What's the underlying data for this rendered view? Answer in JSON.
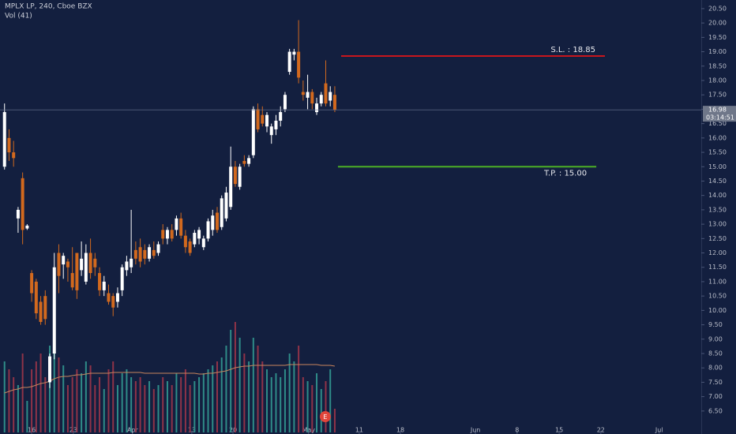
{
  "chart_data": {
    "type": "candlestick",
    "title": "MPLX LP, 240, Cboe BZX",
    "subtitle": "Vol (41)",
    "up_color": "#ffffff",
    "down_color": "#d2691e",
    "volume_up_color": "#2f8c88",
    "volume_down_color": "#8f3348",
    "volume_ma_color": "#c8845c",
    "x": [
      0,
      1,
      2,
      3,
      4,
      5,
      6,
      7,
      8,
      9,
      10,
      11,
      12,
      13,
      14,
      15,
      16,
      17,
      18,
      19,
      20,
      21,
      22,
      23,
      24,
      25,
      26,
      27,
      28,
      29,
      30,
      31,
      32,
      33,
      34,
      35,
      36,
      37,
      38,
      39,
      40,
      41,
      42,
      43,
      44,
      45,
      46,
      47,
      48,
      49,
      50,
      51,
      52,
      53,
      54,
      55,
      56,
      57,
      58,
      59,
      60,
      61,
      62,
      63,
      64,
      65,
      66,
      67,
      68,
      69,
      70,
      71,
      72,
      73
    ],
    "open": [
      15.0,
      16.0,
      15.5,
      13.2,
      14.6,
      12.85,
      11.3,
      11.0,
      10.3,
      10.5,
      7.5,
      8.5,
      12.0,
      11.6,
      11.7,
      11.3,
      12.0,
      11.4,
      11.0,
      12.0,
      11.8,
      11.3,
      10.7,
      10.6,
      10.5,
      10.3,
      10.7,
      11.4,
      11.5,
      12.1,
      12.2,
      12.1,
      11.8,
      12.1,
      12.0,
      12.8,
      12.5,
      12.8,
      12.8,
      13.2,
      12.6,
      12.4,
      12.3,
      12.5,
      12.2,
      12.5,
      12.8,
      13.4,
      12.9,
      13.2,
      13.6,
      15.0,
      14.3,
      15.2,
      15.1,
      15.4,
      17.0,
      16.8,
      16.4,
      16.1,
      16.3,
      16.6,
      17.0,
      18.3,
      18.9,
      19.0,
      17.6,
      17.4,
      17.6,
      16.9,
      17.2,
      17.9,
      17.3,
      17.5
    ],
    "high": [
      17.2,
      16.3,
      15.9,
      13.6,
      14.8,
      13.0,
      11.4,
      11.1,
      10.5,
      10.7,
      8.5,
      12.0,
      12.3,
      12.0,
      11.8,
      12.2,
      12.0,
      12.4,
      12.3,
      12.5,
      12.0,
      11.5,
      11.2,
      10.9,
      10.6,
      10.8,
      11.6,
      11.9,
      13.5,
      12.4,
      12.5,
      12.3,
      12.3,
      12.4,
      12.4,
      13.0,
      12.9,
      13.0,
      13.3,
      13.4,
      12.8,
      12.5,
      12.8,
      12.9,
      12.6,
      13.2,
      13.5,
      13.6,
      14.0,
      14.3,
      15.7,
      15.2,
      15.1,
      15.4,
      15.4,
      17.1,
      17.2,
      17.1,
      16.9,
      16.5,
      16.8,
      17.1,
      17.6,
      19.1,
      19.1,
      20.1,
      18.0,
      18.2,
      17.7,
      17.4,
      17.6,
      18.7,
      17.8,
      17.8
    ],
    "low": [
      14.9,
      15.2,
      15.0,
      12.7,
      12.3,
      12.8,
      10.3,
      9.7,
      9.5,
      9.5,
      7.3,
      8.3,
      10.6,
      11.1,
      11.0,
      10.7,
      10.4,
      11.2,
      10.9,
      11.1,
      11.2,
      10.5,
      10.5,
      10.2,
      9.8,
      10.1,
      10.5,
      11.2,
      11.3,
      11.6,
      11.5,
      11.6,
      11.7,
      11.8,
      11.9,
      12.3,
      12.3,
      12.4,
      12.6,
      12.5,
      12.0,
      11.9,
      12.2,
      12.3,
      12.1,
      12.4,
      12.6,
      12.7,
      12.8,
      13.1,
      13.5,
      14.3,
      14.2,
      15.0,
      15.0,
      15.3,
      16.2,
      16.4,
      16.2,
      15.8,
      16.1,
      16.4,
      16.9,
      18.2,
      18.7,
      17.9,
      17.3,
      17.0,
      17.0,
      16.8,
      17.1,
      17.1,
      17.1,
      16.9
    ],
    "close": [
      16.9,
      15.5,
      15.3,
      13.5,
      12.8,
      12.95,
      10.6,
      9.9,
      9.6,
      9.7,
      8.4,
      11.5,
      11.2,
      11.9,
      11.5,
      10.8,
      10.7,
      11.8,
      12.0,
      11.3,
      11.5,
      10.7,
      11.0,
      10.3,
      10.1,
      10.6,
      11.5,
      11.7,
      11.8,
      11.8,
      11.7,
      11.8,
      12.2,
      11.9,
      12.3,
      12.5,
      12.8,
      12.5,
      13.2,
      12.6,
      12.2,
      12.0,
      12.7,
      12.8,
      12.5,
      13.1,
      13.3,
      12.8,
      13.9,
      14.1,
      15.0,
      14.4,
      15.0,
      15.1,
      15.3,
      17.0,
      16.3,
      16.5,
      16.8,
      16.4,
      16.6,
      16.9,
      17.5,
      19.0,
      19.0,
      18.1,
      17.5,
      17.6,
      17.2,
      17.2,
      17.5,
      17.2,
      17.6,
      16.98
    ],
    "volume": [
      90,
      80,
      70,
      60,
      100,
      40,
      80,
      90,
      100,
      70,
      110,
      130,
      95,
      85,
      60,
      70,
      80,
      75,
      90,
      85,
      60,
      70,
      55,
      80,
      90,
      60,
      75,
      80,
      70,
      65,
      70,
      60,
      65,
      55,
      60,
      70,
      65,
      60,
      75,
      70,
      80,
      60,
      65,
      70,
      75,
      80,
      85,
      90,
      95,
      110,
      130,
      140,
      120,
      100,
      90,
      120,
      110,
      90,
      80,
      70,
      75,
      70,
      80,
      100,
      90,
      110,
      70,
      65,
      60,
      75,
      55,
      65,
      80,
      30
    ],
    "volume_ma": [
      50,
      52,
      54,
      55,
      57,
      57,
      58,
      60,
      62,
      63,
      65,
      68,
      70,
      71,
      71,
      72,
      73,
      73,
      74,
      75,
      75,
      75,
      75,
      75,
      76,
      76,
      76,
      76,
      76,
      76,
      76,
      75,
      75,
      75,
      75,
      75,
      75,
      75,
      75,
      75,
      75,
      75,
      75,
      74,
      74,
      75,
      75,
      76,
      77,
      78,
      80,
      82,
      83,
      84,
      84,
      85,
      85,
      85,
      85,
      85,
      85,
      85,
      85,
      86,
      86,
      86,
      86,
      86,
      86,
      86,
      85,
      85,
      85,
      84
    ],
    "vlim": [
      0,
      150
    ],
    "xlim": [
      -1,
      154
    ],
    "xticks": [
      {
        "value": 6.0,
        "label": "16"
      },
      {
        "value": 15.2,
        "label": "23"
      },
      {
        "value": 28.3,
        "label": "Apr"
      },
      {
        "value": 41.4,
        "label": "13"
      },
      {
        "value": 50.5,
        "label": "20"
      },
      {
        "value": 67.2,
        "label": "May"
      },
      {
        "value": 78.4,
        "label": "11"
      },
      {
        "value": 87.5,
        "label": "18"
      },
      {
        "value": 104.1,
        "label": "Jun"
      },
      {
        "value": 113.3,
        "label": "8"
      },
      {
        "value": 122.6,
        "label": "15"
      },
      {
        "value": 131.8,
        "label": "22"
      },
      {
        "value": 144.7,
        "label": "Jul"
      }
    ],
    "ylim": [
      5.7,
      20.8
    ],
    "yticks": [
      {
        "value": 6.5,
        "label": "6.50"
      },
      {
        "value": 7,
        "label": "7.00"
      },
      {
        "value": 7.5,
        "label": "7.50"
      },
      {
        "value": 8,
        "label": "8.00"
      },
      {
        "value": 8.5,
        "label": "8.50"
      },
      {
        "value": 9,
        "label": "9.00"
      },
      {
        "value": 9.5,
        "label": "9.50"
      },
      {
        "value": 10,
        "label": "10.00"
      },
      {
        "value": 10.5,
        "label": "10.50"
      },
      {
        "value": 11,
        "label": "11.00"
      },
      {
        "value": 11.5,
        "label": "11.50"
      },
      {
        "value": 12,
        "label": "12.00"
      },
      {
        "value": 12.5,
        "label": "12.50"
      },
      {
        "value": 13,
        "label": "13.00"
      },
      {
        "value": 13.5,
        "label": "13.50"
      },
      {
        "value": 14,
        "label": "14.00"
      },
      {
        "value": 14.5,
        "label": "14.50"
      },
      {
        "value": 15,
        "label": "15.00"
      },
      {
        "value": 15.5,
        "label": "15.50"
      },
      {
        "value": 16,
        "label": "16.00"
      },
      {
        "value": 16.5,
        "label": "16.50"
      },
      {
        "value": 17,
        "label": "17.00"
      },
      {
        "value": 17.5,
        "label": "17.50"
      },
      {
        "value": 18,
        "label": "18.00"
      },
      {
        "value": 18.5,
        "label": "18.50"
      },
      {
        "value": 19,
        "label": "19.00"
      },
      {
        "value": 19.5,
        "label": "19.50"
      },
      {
        "value": 20,
        "label": "20.00"
      },
      {
        "value": 20.5,
        "label": "20.50"
      }
    ],
    "last_price": {
      "value": 16.98,
      "countdown": "03:14:51"
    },
    "levels": [
      {
        "label": "S.L. : 18.85",
        "value": 18.85,
        "x_start": 74.4,
        "x_end": 132.7,
        "color": "#c8161d"
      },
      {
        "label": "T.P. : 15.00",
        "value": 15.0,
        "x_start": 73.7,
        "x_end": 130.8,
        "color": "#4caf27"
      }
    ],
    "event_marker": {
      "label": "E",
      "x": 70.9,
      "color": "#e0453a"
    }
  }
}
